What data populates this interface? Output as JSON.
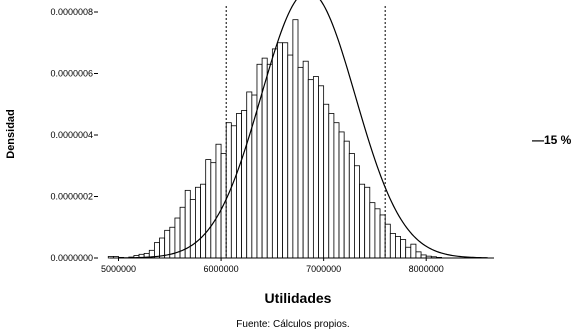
{
  "source_note": "Fuente: Cálculos propios.",
  "chart_data": {
    "type": "bar",
    "xlabel": "Utilidades",
    "ylabel": "Densidad",
    "xlim": [
      4800000,
      8700000
    ],
    "ylim": [
      0,
      8e-07
    ],
    "x_ticks": [
      5000000,
      6000000,
      7000000,
      8000000
    ],
    "x_tick_labels": [
      "5000000",
      "6000000",
      "7000000",
      "8000000"
    ],
    "y_ticks": [
      0,
      2e-07,
      4e-07,
      6e-07,
      8e-07
    ],
    "y_tick_labels": [
      "0.0000000",
      "0.0000002",
      "0.0000004",
      "0.0000006",
      "0.0000008"
    ],
    "bin_width": 50000,
    "bin_start": 4900000,
    "densities": [
      5e-09,
      5e-09,
      2e-09,
      0.0,
      3e-09,
      8e-09,
      1.2e-08,
      1.5e-08,
      2.5e-08,
      5e-08,
      6.5e-08,
      9e-08,
      1e-07,
      1.3e-07,
      1.65e-07,
      2.2e-07,
      1.9e-07,
      2.3e-07,
      2.4e-07,
      3.2e-07,
      3.1e-07,
      3.7e-07,
      3.4e-07,
      4.4e-07,
      4.3e-07,
      4.7e-07,
      4.8e-07,
      5.4e-07,
      5.3e-07,
      6.3e-07,
      6.5e-07,
      6.3e-07,
      6.8e-07,
      7e-07,
      7e-07,
      6.6e-07,
      7.75e-07,
      6.2e-07,
      6.4e-07,
      5.8e-07,
      5.9e-07,
      5.6e-07,
      5e-07,
      4.7e-07,
      4.4e-07,
      4.1e-07,
      3.8e-07,
      3.4e-07,
      3e-07,
      2.4e-07,
      2.3e-07,
      1.8e-07,
      1.6e-07,
      1.4e-07,
      1.1e-07,
      8e-08,
      7e-08,
      6e-08,
      3.5e-08,
      4.5e-08,
      2e-08,
      1e-08,
      6e-09,
      4e-09,
      2e-09
    ],
    "fitted_curve": {
      "type": "normal",
      "mean": 6850000,
      "sd": 460000
    },
    "reference_lines": [
      6050000,
      7600000
    ],
    "annotation": "—15 %"
  }
}
